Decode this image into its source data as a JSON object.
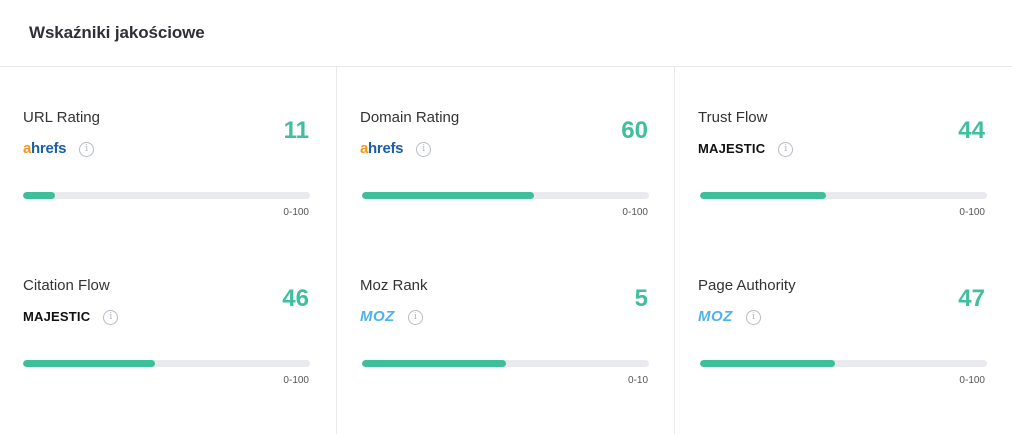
{
  "panel": {
    "title": "Wskaźniki jakościowe"
  },
  "metrics": [
    {
      "name": "URL Rating",
      "source": "ahrefs",
      "source_text_a": "a",
      "source_text_rest": "hrefs",
      "value": "11",
      "fraction": 0.11,
      "range": "0-100"
    },
    {
      "name": "Domain Rating",
      "source": "ahrefs",
      "source_text_a": "a",
      "source_text_rest": "hrefs",
      "value": "60",
      "fraction": 0.6,
      "range": "0-100"
    },
    {
      "name": "Trust Flow",
      "source": "majestic",
      "source_text": "MAJESTIC",
      "value": "44",
      "fraction": 0.44,
      "range": "0-100"
    },
    {
      "name": "Citation Flow",
      "source": "majestic",
      "source_text": "MAJESTIC",
      "value": "46",
      "fraction": 0.46,
      "range": "0-100"
    },
    {
      "name": "Moz Rank",
      "source": "moz",
      "source_text": "MOZ",
      "value": "5",
      "fraction": 0.5,
      "range": "0-10"
    },
    {
      "name": "Page Authority",
      "source": "moz",
      "source_text": "MOZ",
      "value": "47",
      "fraction": 0.47,
      "range": "0-100"
    }
  ],
  "icons": {
    "info": "info-icon"
  },
  "colors": {
    "accent": "#3dbf9c",
    "value_text": "#3fbf9f",
    "track": "#e8eaed",
    "ahrefs_orange": "#f7941d",
    "ahrefs_blue": "#1a5fa8",
    "moz_blue": "#4fb3e8"
  }
}
